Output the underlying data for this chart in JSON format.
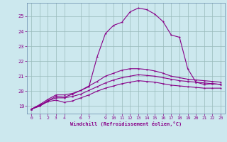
{
  "xlabel": "Windchill (Refroidissement éolien,°C)",
  "ylabel": "",
  "bg_color": "#cce8ee",
  "line_color": "#880088",
  "grid_color": "#99bbbb",
  "spine_color": "#6688aa",
  "xlim": [
    -0.5,
    23.5
  ],
  "ylim": [
    18.5,
    25.9
  ],
  "xticks": [
    0,
    1,
    2,
    3,
    4,
    6,
    7,
    9,
    10,
    11,
    12,
    13,
    14,
    15,
    16,
    17,
    18,
    19,
    20,
    21,
    22,
    23
  ],
  "yticks": [
    19,
    20,
    21,
    22,
    23,
    24,
    25
  ],
  "series": [
    [
      18.8,
      19.0,
      19.3,
      19.4,
      19.25,
      19.35,
      19.55,
      19.75,
      20.0,
      20.2,
      20.35,
      20.5,
      20.6,
      20.7,
      20.65,
      20.6,
      20.5,
      20.4,
      20.35,
      20.3,
      20.25,
      20.2,
      20.2,
      20.2
    ],
    [
      18.8,
      19.05,
      19.35,
      19.55,
      19.55,
      19.65,
      19.8,
      20.05,
      20.3,
      20.55,
      20.75,
      20.9,
      21.0,
      21.1,
      21.05,
      21.0,
      20.9,
      20.8,
      20.7,
      20.65,
      20.6,
      20.55,
      20.5,
      20.45
    ],
    [
      18.8,
      19.1,
      19.45,
      19.75,
      19.75,
      19.85,
      20.05,
      20.35,
      20.65,
      21.0,
      21.2,
      21.4,
      21.5,
      21.5,
      21.45,
      21.35,
      21.2,
      21.0,
      20.9,
      20.8,
      20.75,
      20.7,
      20.65,
      20.6
    ],
    [
      18.8,
      19.0,
      19.35,
      19.65,
      19.6,
      19.8,
      20.05,
      20.3,
      22.3,
      23.85,
      24.4,
      24.6,
      25.3,
      25.55,
      25.45,
      25.15,
      24.65,
      23.75,
      23.6,
      21.5,
      20.6,
      20.45,
      20.5,
      20.45
    ]
  ]
}
